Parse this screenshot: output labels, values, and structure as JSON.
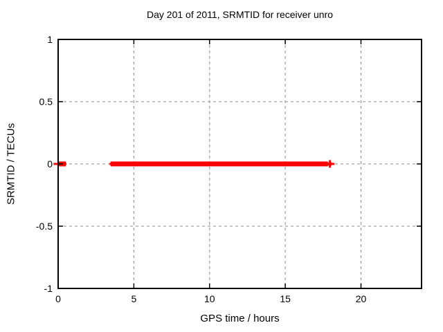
{
  "chart_data": {
    "type": "scatter",
    "title": "Day 201 of 2011, SRMTID for receiver unro",
    "xlabel": "GPS time / hours",
    "ylabel": "SRMTID / TECUs",
    "xlim": [
      0,
      24
    ],
    "ylim": [
      -1,
      1
    ],
    "xticks": [
      0,
      5,
      10,
      15,
      20
    ],
    "yticks": [
      1,
      0.5,
      0,
      -0.5,
      -1
    ],
    "grid": true,
    "legend_position": "none",
    "colors": {
      "series": "#ff0000",
      "grid": "#a0a0a0",
      "axis": "#000000",
      "background": "#ffffff"
    },
    "series": [
      {
        "name": "SRMTID",
        "color": "#ff0000",
        "marker": "filled-square-with-errorbars",
        "y": 0,
        "whisker_segments": [
          [
            -0.3,
            0.55
          ],
          [
            3.38,
            17.78
          ]
        ],
        "point_bands": [
          [
            0.2,
            0.35
          ],
          [
            3.62,
            17.66
          ]
        ],
        "isolated_points": [
          17.95
        ]
      }
    ]
  }
}
